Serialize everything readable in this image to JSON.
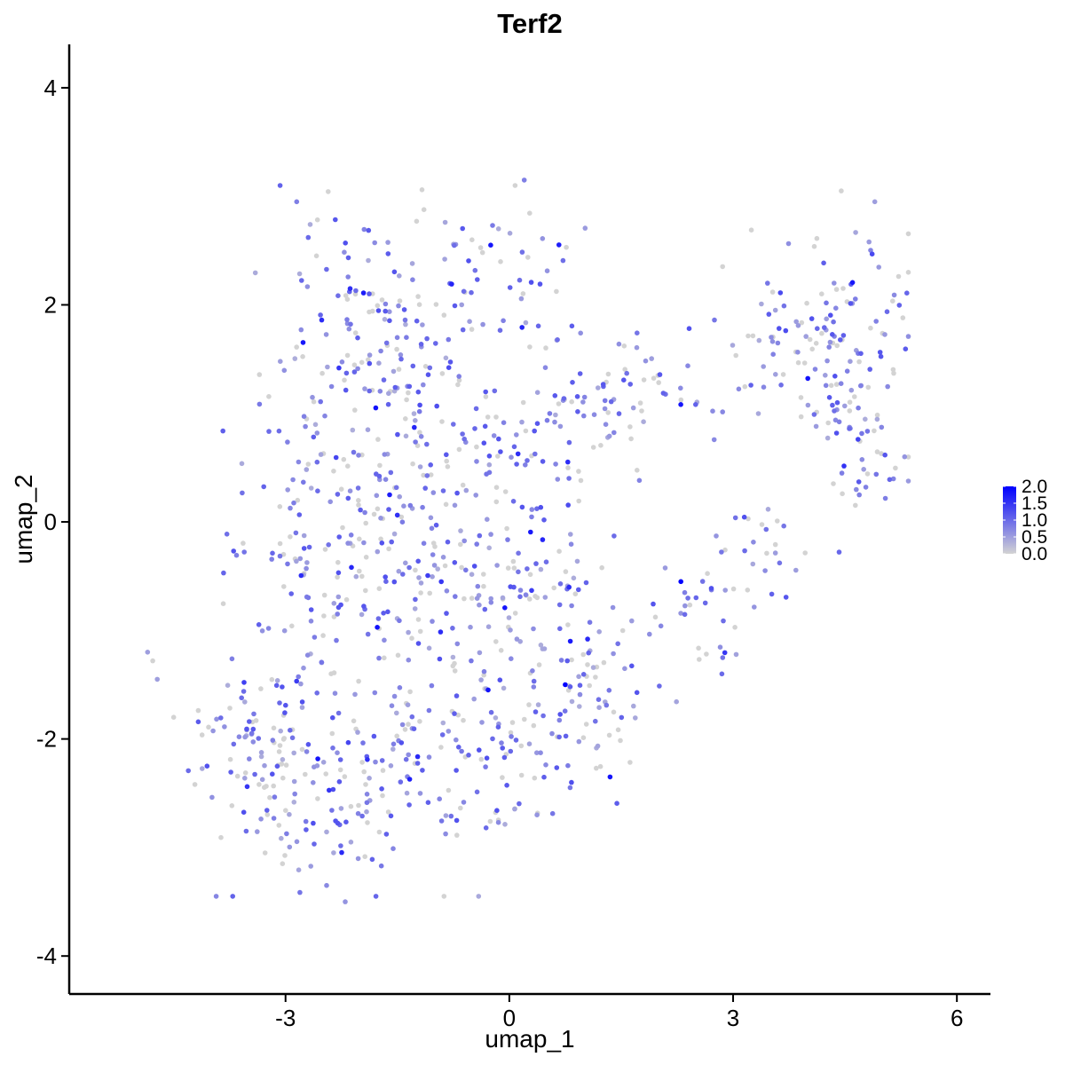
{
  "chart_data": {
    "type": "scatter",
    "title": "Terf2",
    "xlabel": "umap_1",
    "ylabel": "umap_2",
    "xlim": [
      -5.9,
      6.45
    ],
    "ylim": [
      -4.35,
      4.4
    ],
    "x_ticks": [
      -3,
      0,
      3,
      6
    ],
    "y_ticks": [
      -4,
      -2,
      0,
      2,
      4
    ],
    "x_tick_labels": [
      "-3",
      "0",
      "3",
      "6"
    ],
    "y_tick_labels": [
      "-4",
      "-2",
      "0",
      "2",
      "4"
    ],
    "grid": false,
    "color_scale": {
      "low_color": "#d3d3d3",
      "high_color": "#0000ff",
      "min": 0.0,
      "max": 2.0,
      "ticks": [
        2.0,
        1.5,
        1.0,
        0.5,
        0.0
      ],
      "tick_labels": [
        "2.0",
        "1.5",
        "1.0",
        "0.5",
        "0.0"
      ],
      "legend_position": "right"
    },
    "n_points": 1400,
    "points": [
      {
        "x": -4.85,
        "y": -1.2,
        "v": 0.5
      },
      {
        "x": -4.78,
        "y": -1.28,
        "v": 0.0
      },
      {
        "x": -4.72,
        "y": -1.45,
        "v": 0.5
      },
      {
        "x": -4.5,
        "y": -1.8,
        "v": 0.0
      },
      {
        "x": 2.3,
        "y": -0.55,
        "v": 2.0
      },
      {
        "x": 0.75,
        "y": -1.5,
        "v": 2.0
      },
      {
        "x": 1.35,
        "y": -2.35,
        "v": 1.8
      },
      {
        "x": 1.05,
        "y": -1.08,
        "v": 1.6
      },
      {
        "x": 0.2,
        "y": 3.15,
        "v": 0.8
      },
      {
        "x": 4.45,
        "y": 3.05,
        "v": 0.0
      },
      {
        "x": 4.9,
        "y": 2.95,
        "v": 0.5
      },
      {
        "x": 2.85,
        "y": -1.4,
        "v": 1.0
      },
      {
        "x": -2.2,
        "y": -3.5,
        "v": 0.6
      },
      {
        "x": -2.45,
        "y": -3.35,
        "v": 0.7
      },
      {
        "x": 5.35,
        "y": 2.3,
        "v": 0.0
      },
      {
        "x": 5.3,
        "y": 0.6,
        "v": 0.6
      },
      {
        "x": -0.25,
        "y": 2.55,
        "v": 1.8
      },
      {
        "x": -2.85,
        "y": 2.95,
        "v": 0.8
      },
      {
        "x": -1.45,
        "y": 1.5,
        "v": 1.0
      }
    ],
    "regions": [
      {
        "cx": -2.1,
        "cy": 1.4,
        "rx": 1.15,
        "ry": 1.3,
        "n": 110
      },
      {
        "cx": -0.6,
        "cy": 2.2,
        "rx": 1.3,
        "ry": 0.75,
        "n": 75
      },
      {
        "cx": -1.0,
        "cy": 0.8,
        "rx": 1.5,
        "ry": 1.0,
        "n": 120
      },
      {
        "cx": -2.8,
        "cy": -0.5,
        "rx": 0.9,
        "ry": 1.3,
        "n": 90
      },
      {
        "cx": -1.3,
        "cy": -0.5,
        "rx": 1.0,
        "ry": 1.1,
        "n": 110
      },
      {
        "cx": 0.2,
        "cy": -0.5,
        "rx": 1.0,
        "ry": 1.2,
        "n": 110
      },
      {
        "cx": -3.3,
        "cy": -2.2,
        "rx": 0.9,
        "ry": 0.85,
        "n": 110
      },
      {
        "cx": -1.9,
        "cy": -2.4,
        "rx": 1.0,
        "ry": 0.9,
        "n": 105
      },
      {
        "cx": -0.2,
        "cy": -2.1,
        "rx": 1.1,
        "ry": 0.9,
        "n": 100
      },
      {
        "cx": 1.0,
        "cy": -1.6,
        "rx": 0.7,
        "ry": 0.85,
        "n": 50
      },
      {
        "cx": 1.0,
        "cy": 1.0,
        "rx": 1.0,
        "ry": 0.6,
        "n": 50
      },
      {
        "cx": 2.2,
        "cy": 1.2,
        "rx": 0.9,
        "ry": 0.5,
        "n": 30
      },
      {
        "cx": 2.6,
        "cy": -0.9,
        "rx": 0.8,
        "ry": 0.6,
        "n": 30
      },
      {
        "cx": 3.8,
        "cy": 1.6,
        "rx": 0.9,
        "ry": 0.7,
        "n": 65
      },
      {
        "cx": 4.6,
        "cy": 1.7,
        "rx": 0.75,
        "ry": 1.0,
        "n": 75
      },
      {
        "cx": 4.7,
        "cy": 0.5,
        "rx": 0.6,
        "ry": 0.6,
        "n": 35
      },
      {
        "cx": 3.4,
        "cy": -0.3,
        "rx": 0.6,
        "ry": 0.6,
        "n": 25
      }
    ]
  }
}
